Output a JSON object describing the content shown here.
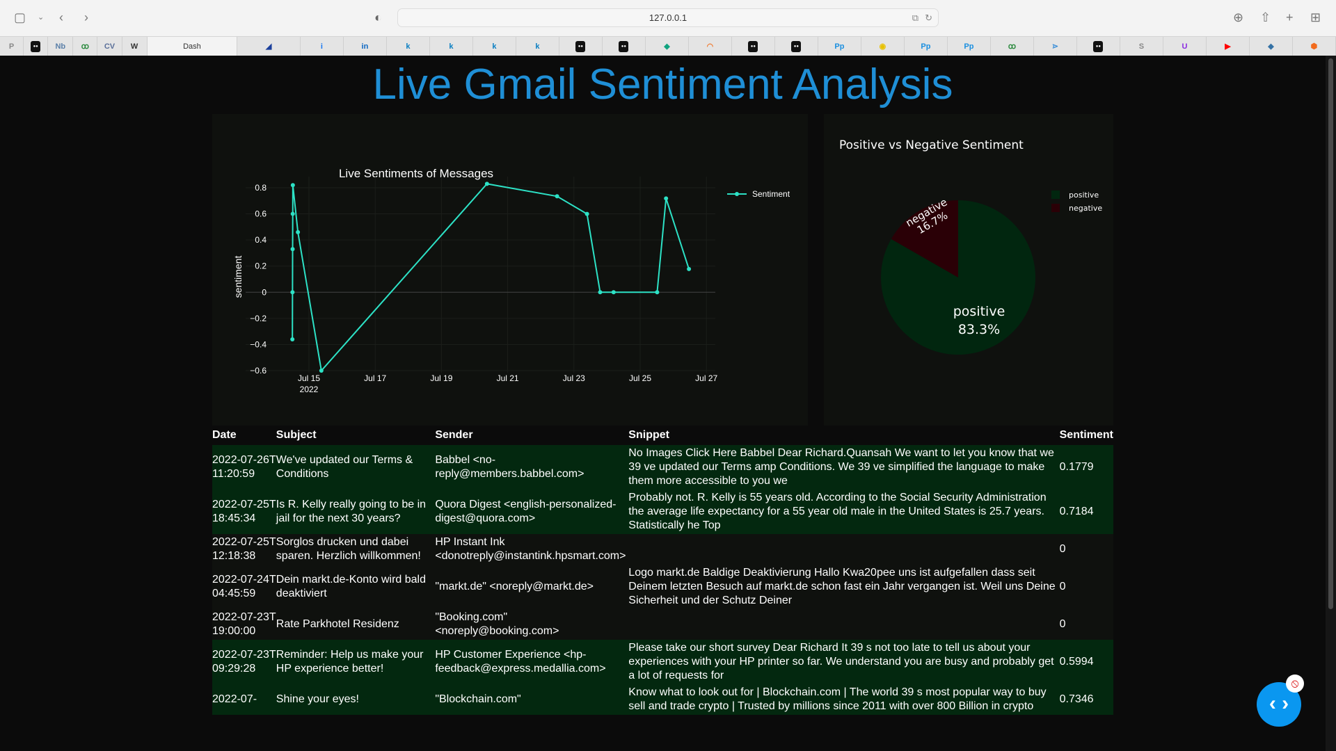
{
  "browser": {
    "url": "127.0.0.1",
    "active_tab": "Dash",
    "bookmarks": [
      {
        "icon": "P",
        "c": "#888"
      },
      {
        "icon": "●●",
        "c": "#111"
      },
      {
        "icon": "Nb",
        "c": "#5a7fa8"
      },
      {
        "icon": "ꝏ",
        "c": "#2b8a3e"
      },
      {
        "icon": "CV",
        "c": "#5a6f99"
      },
      {
        "icon": "W",
        "c": "#333"
      },
      {
        "icon": "Dash",
        "c": "#333"
      },
      {
        "icon": "◢",
        "c": "#1a3f9c"
      },
      {
        "icon": "i",
        "c": "#1877f2"
      },
      {
        "icon": "in",
        "c": "#0a66c2"
      },
      {
        "icon": "k",
        "c": "#0a7fc2"
      },
      {
        "icon": "k",
        "c": "#0a7fc2"
      },
      {
        "icon": "k",
        "c": "#0a7fc2"
      },
      {
        "icon": "k",
        "c": "#0a7fc2"
      },
      {
        "icon": "●●",
        "c": "#111"
      },
      {
        "icon": "●●",
        "c": "#111"
      },
      {
        "icon": "◆",
        "c": "#10a37f"
      },
      {
        "icon": "◠",
        "c": "#f0762a"
      },
      {
        "icon": "●●",
        "c": "#111"
      },
      {
        "icon": "●●",
        "c": "#111"
      },
      {
        "icon": "Pp",
        "c": "#1a8fe0"
      },
      {
        "icon": "◉",
        "c": "#e8c100"
      },
      {
        "icon": "Pp",
        "c": "#1a8fe0"
      },
      {
        "icon": "Pp",
        "c": "#1a8fe0"
      },
      {
        "icon": "ꝏ",
        "c": "#2b8a3e"
      },
      {
        "icon": "⋗",
        "c": "#3c8fd8"
      },
      {
        "icon": "●●",
        "c": "#111"
      },
      {
        "icon": "S",
        "c": "#888"
      },
      {
        "icon": "U",
        "c": "#8a2be2"
      },
      {
        "icon": "▶",
        "c": "#f00"
      },
      {
        "icon": "◆",
        "c": "#3572a5"
      },
      {
        "icon": "⬢",
        "c": "#f26b1d"
      }
    ]
  },
  "header": {
    "title": "Live Gmail Sentiment Analysis",
    "title_color": "#1f8fd6"
  },
  "chart_data": [
    {
      "type": "line",
      "title": "Live Sentiments of Messages",
      "xlabel": "",
      "ylabel": "sentiment",
      "x_ticks": [
        "Jul 15",
        "Jul 17",
        "Jul 19",
        "Jul 21",
        "Jul 23",
        "Jul 25",
        "Jul 27"
      ],
      "x_year_label": "2022",
      "y_ticks": [
        0.8,
        0.6,
        0.4,
        0.2,
        0,
        -0.2,
        -0.4,
        -0.6
      ],
      "ylim": [
        -0.6,
        0.85
      ],
      "xlim": [
        "2022-07-14",
        "2022-07-27"
      ],
      "grid": true,
      "legend": "top-right",
      "series": [
        {
          "name": "Sentiment",
          "color": "#2de2c6",
          "x": [
            "2022-07-14T12:00",
            "2022-07-14T12:05",
            "2022-07-14T12:10",
            "2022-07-14T12:15",
            "2022-07-14T12:20",
            "2022-07-14T16:00",
            "2022-07-15T09:00",
            "2022-07-20T09:00",
            "2022-07-22T11:47",
            "2022-07-23T09:29",
            "2022-07-23T19:00",
            "2022-07-24T04:45",
            "2022-07-25T12:18",
            "2022-07-25T18:45",
            "2022-07-26T11:20"
          ],
          "y": [
            -0.36,
            0,
            0.33,
            0.6,
            0.82,
            0.46,
            -0.6,
            0.83,
            0.7346,
            0.5994,
            0,
            0,
            0,
            0.7184,
            0.1779
          ]
        }
      ]
    },
    {
      "type": "pie",
      "title": "Positive vs Negative Sentiment",
      "legend": "top-right",
      "slices": [
        {
          "label": "positive",
          "value": 83.3,
          "text": "83.3%",
          "color": "#01260f"
        },
        {
          "label": "negative",
          "value": 16.7,
          "text": "16.7%",
          "color": "#2a0006"
        }
      ]
    }
  ],
  "table": {
    "headers": [
      "Date",
      "Subject",
      "Sender",
      "Snippet",
      "Sentiment"
    ],
    "rows": [
      {
        "date": "2022-07-26T11:20:59",
        "subject": "We've updated our Terms & Conditions",
        "sender": "Babbel <no-reply@members.babbel.com>",
        "snippet": "No Images Click Here Babbel Dear Richard.Quansah We want to let you know that we 39 ve updated our Terms amp Conditions. We 39 ve simplified the language to make them more accessible to you we",
        "sentiment": "0.1779",
        "tone": "pos"
      },
      {
        "date": "2022-07-25T18:45:34",
        "subject": "Is R. Kelly really going to be in jail for the next 30 years?",
        "sender": "Quora Digest <english-personalized-digest@quora.com>",
        "snippet": "Probably not. R. Kelly is 55 years old. According to the Social Security Administration the average life expectancy for a 55 year old male in the United States is 25.7 years. Statistically he Top",
        "sentiment": "0.7184",
        "tone": "pos"
      },
      {
        "date": "2022-07-25T12:18:38",
        "subject": "Sorglos drucken und dabei sparen. Herzlich willkommen!",
        "sender": "HP Instant Ink <donotreply@instantink.hpsmart.com>",
        "snippet": "",
        "sentiment": "0",
        "tone": "neu"
      },
      {
        "date": "2022-07-24T04:45:59",
        "subject": "Dein markt.de-Konto wird bald deaktiviert",
        "sender": "\"markt.de\" <noreply@markt.de>",
        "snippet": "Logo markt.de Baldige Deaktivierung Hallo Kwa20pee uns ist aufgefallen dass seit Deinem letzten Besuch auf markt.de schon fast ein Jahr vergangen ist. Weil uns Deine Sicherheit und der Schutz Deiner",
        "sentiment": "0",
        "tone": "neu"
      },
      {
        "date": "2022-07-23T19:00:00",
        "subject": "Rate Parkhotel Residenz",
        "sender": "\"Booking.com\" <noreply@booking.com>",
        "snippet": "",
        "sentiment": "0",
        "tone": "neu"
      },
      {
        "date": "2022-07-23T09:29:28",
        "subject": "Reminder: Help us make your HP experience better!",
        "sender": "HP Customer Experience <hp-feedback@express.medallia.com>",
        "snippet": "Please take our short survey Dear Richard It 39 s not too late to tell us about your experiences with your HP printer so far. We understand you are busy and probably get a lot of requests for",
        "sentiment": "0.5994",
        "tone": "pos"
      },
      {
        "date": "2022-07-",
        "subject": "Shine your eyes!",
        "sender": "\"Blockchain.com\"",
        "snippet": "Know what to look out for | Blockchain.com | The world 39 s most popular way to buy sell and trade crypto | Trusted by millions since 2011 with over 800 Billion in crypto",
        "sentiment": "0.7346",
        "tone": "pos"
      }
    ]
  }
}
